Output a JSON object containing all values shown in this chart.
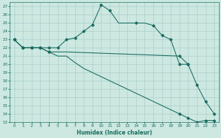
{
  "xlabel": "Humidex (Indice chaleur)",
  "bg_color": "#cce8e0",
  "grid_color": "#aacccc",
  "line_color": "#1a6b60",
  "xlim": [
    -0.5,
    23.5
  ],
  "ylim": [
    13,
    27.5
  ],
  "xticks": [
    0,
    1,
    2,
    3,
    4,
    5,
    6,
    7,
    8,
    9,
    10,
    11,
    12,
    13,
    14,
    15,
    16,
    17,
    18,
    19,
    20,
    21,
    22,
    23
  ],
  "yticks": [
    13,
    14,
    15,
    16,
    17,
    18,
    19,
    20,
    21,
    22,
    23,
    24,
    25,
    26,
    27
  ],
  "line1_x": [
    0,
    1,
    2,
    3,
    4,
    5,
    6,
    7,
    8,
    9,
    10,
    11,
    12,
    13,
    14,
    15,
    16,
    17,
    18,
    19,
    20
  ],
  "line1_y": [
    23,
    22,
    22,
    22,
    22,
    22,
    23,
    23.2,
    24,
    24.8,
    27.2,
    26.5,
    25,
    25,
    25,
    25,
    24.7,
    23.5,
    23,
    20,
    20
  ],
  "line1_mk_x": [
    0,
    1,
    2,
    3,
    4,
    5,
    6,
    7,
    8,
    9,
    10,
    11,
    14,
    16,
    17,
    18,
    19,
    20
  ],
  "line1_mk_y": [
    23,
    22,
    22,
    22,
    22,
    22,
    23,
    23.2,
    24,
    24.8,
    27.2,
    26.5,
    25,
    24.7,
    23.5,
    23,
    20,
    20
  ],
  "line2_x": [
    0,
    1,
    2,
    3,
    4,
    5,
    6,
    19,
    20,
    21,
    22,
    23
  ],
  "line2_y": [
    23,
    22,
    22,
    22,
    21.5,
    21.5,
    21.5,
    21,
    20,
    17.5,
    15.5,
    14
  ],
  "line2_mk_x": [
    0,
    1,
    2,
    3,
    4,
    19,
    20,
    21,
    22,
    23
  ],
  "line2_mk_y": [
    23,
    22,
    22,
    22,
    21.5,
    21,
    20,
    17.5,
    15.5,
    14
  ],
  "line3_x": [
    0,
    1,
    2,
    3,
    4,
    5,
    6,
    7,
    8,
    9,
    10,
    11,
    12,
    13,
    14,
    15,
    16,
    17,
    18,
    19,
    20,
    21,
    22,
    23
  ],
  "line3_y": [
    23,
    22,
    22,
    22,
    21.5,
    21,
    21,
    20.2,
    19.5,
    19,
    18.5,
    18,
    17.5,
    17,
    16.5,
    16,
    15.5,
    15,
    14.5,
    14,
    13.5,
    13,
    13.2,
    13.2
  ],
  "line3_mk_x": [
    0,
    1,
    2,
    3,
    4,
    19,
    20,
    21,
    22,
    23
  ],
  "line3_mk_y": [
    23,
    22,
    22,
    22,
    21.5,
    14,
    13.5,
    13,
    13.2,
    13.2
  ]
}
